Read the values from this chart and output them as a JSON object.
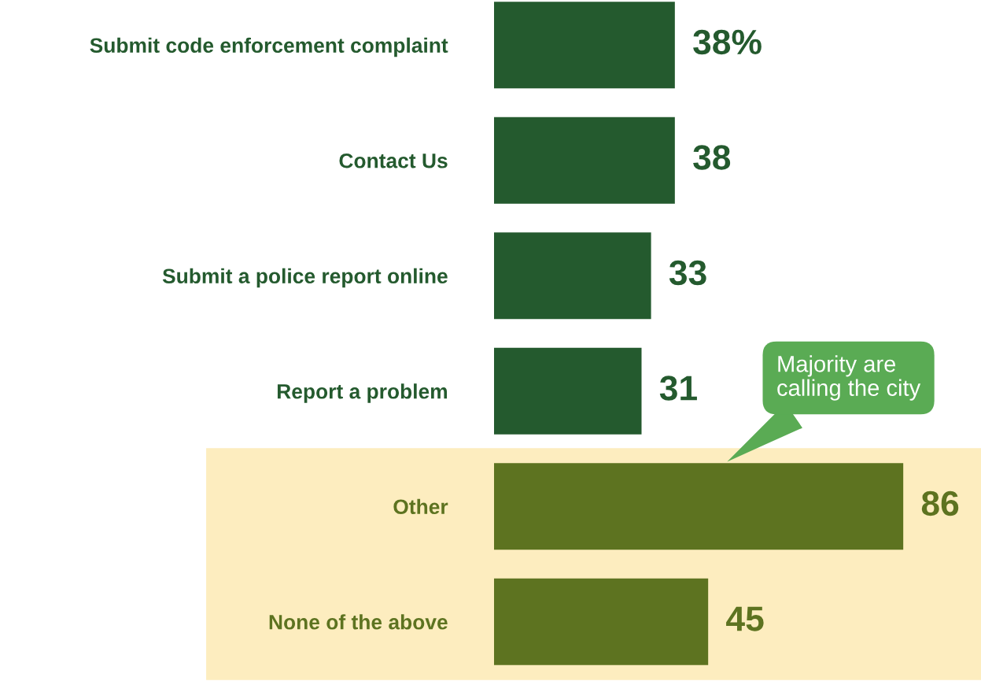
{
  "chart_data": {
    "type": "bar",
    "orientation": "horizontal",
    "categories": [
      "Submit code enforcement complaint",
      "Contact Us",
      "Submit a police report online",
      "Report a problem",
      "Other",
      "None of the above"
    ],
    "values": [
      38,
      38,
      33,
      31,
      86,
      45
    ],
    "colors": [
      "#245a2e",
      "#245a2e",
      "#245a2e",
      "#245a2e",
      "#5d7320",
      "#5d7320"
    ],
    "value_labels": [
      "38%",
      "38",
      "33",
      "31",
      "86",
      "45"
    ],
    "tick_labels": "y",
    "bands": [
      {
        "axis": "y",
        "from": "Other",
        "to": "None of the above",
        "color": "#fdedbf"
      }
    ],
    "annotations": [
      "Majority are\ncalling the city"
    ],
    "grid": false,
    "legend": false
  }
}
